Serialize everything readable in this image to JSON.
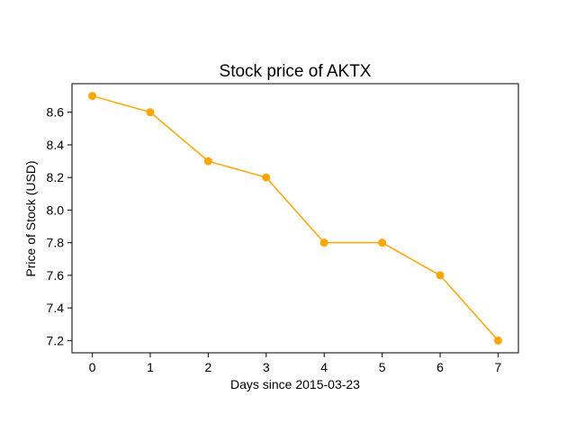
{
  "chart_data": {
    "type": "line",
    "title": "Stock price of AKTX",
    "xlabel": "Days since 2015-03-23",
    "ylabel": "Price of Stock (USD)",
    "x": [
      0,
      1,
      2,
      3,
      4,
      5,
      6,
      7
    ],
    "series": [
      {
        "values": [
          8.7,
          8.6,
          8.3,
          8.2,
          7.8,
          7.8,
          7.6,
          7.2
        ],
        "color": "#FFA500"
      }
    ],
    "xticks": [
      0,
      1,
      2,
      3,
      4,
      5,
      6,
      7
    ],
    "yticks": [
      7.2,
      7.4,
      7.6,
      7.8,
      8.0,
      8.2,
      8.4,
      8.6
    ],
    "ytick_labels": [
      "7.2",
      "7.4",
      "7.6",
      "7.8",
      "8.0",
      "8.2",
      "8.4",
      "8.6"
    ],
    "xlim": [
      -0.35,
      7.35
    ],
    "ylim": [
      7.125,
      8.775
    ],
    "grid": false,
    "legend": false
  }
}
